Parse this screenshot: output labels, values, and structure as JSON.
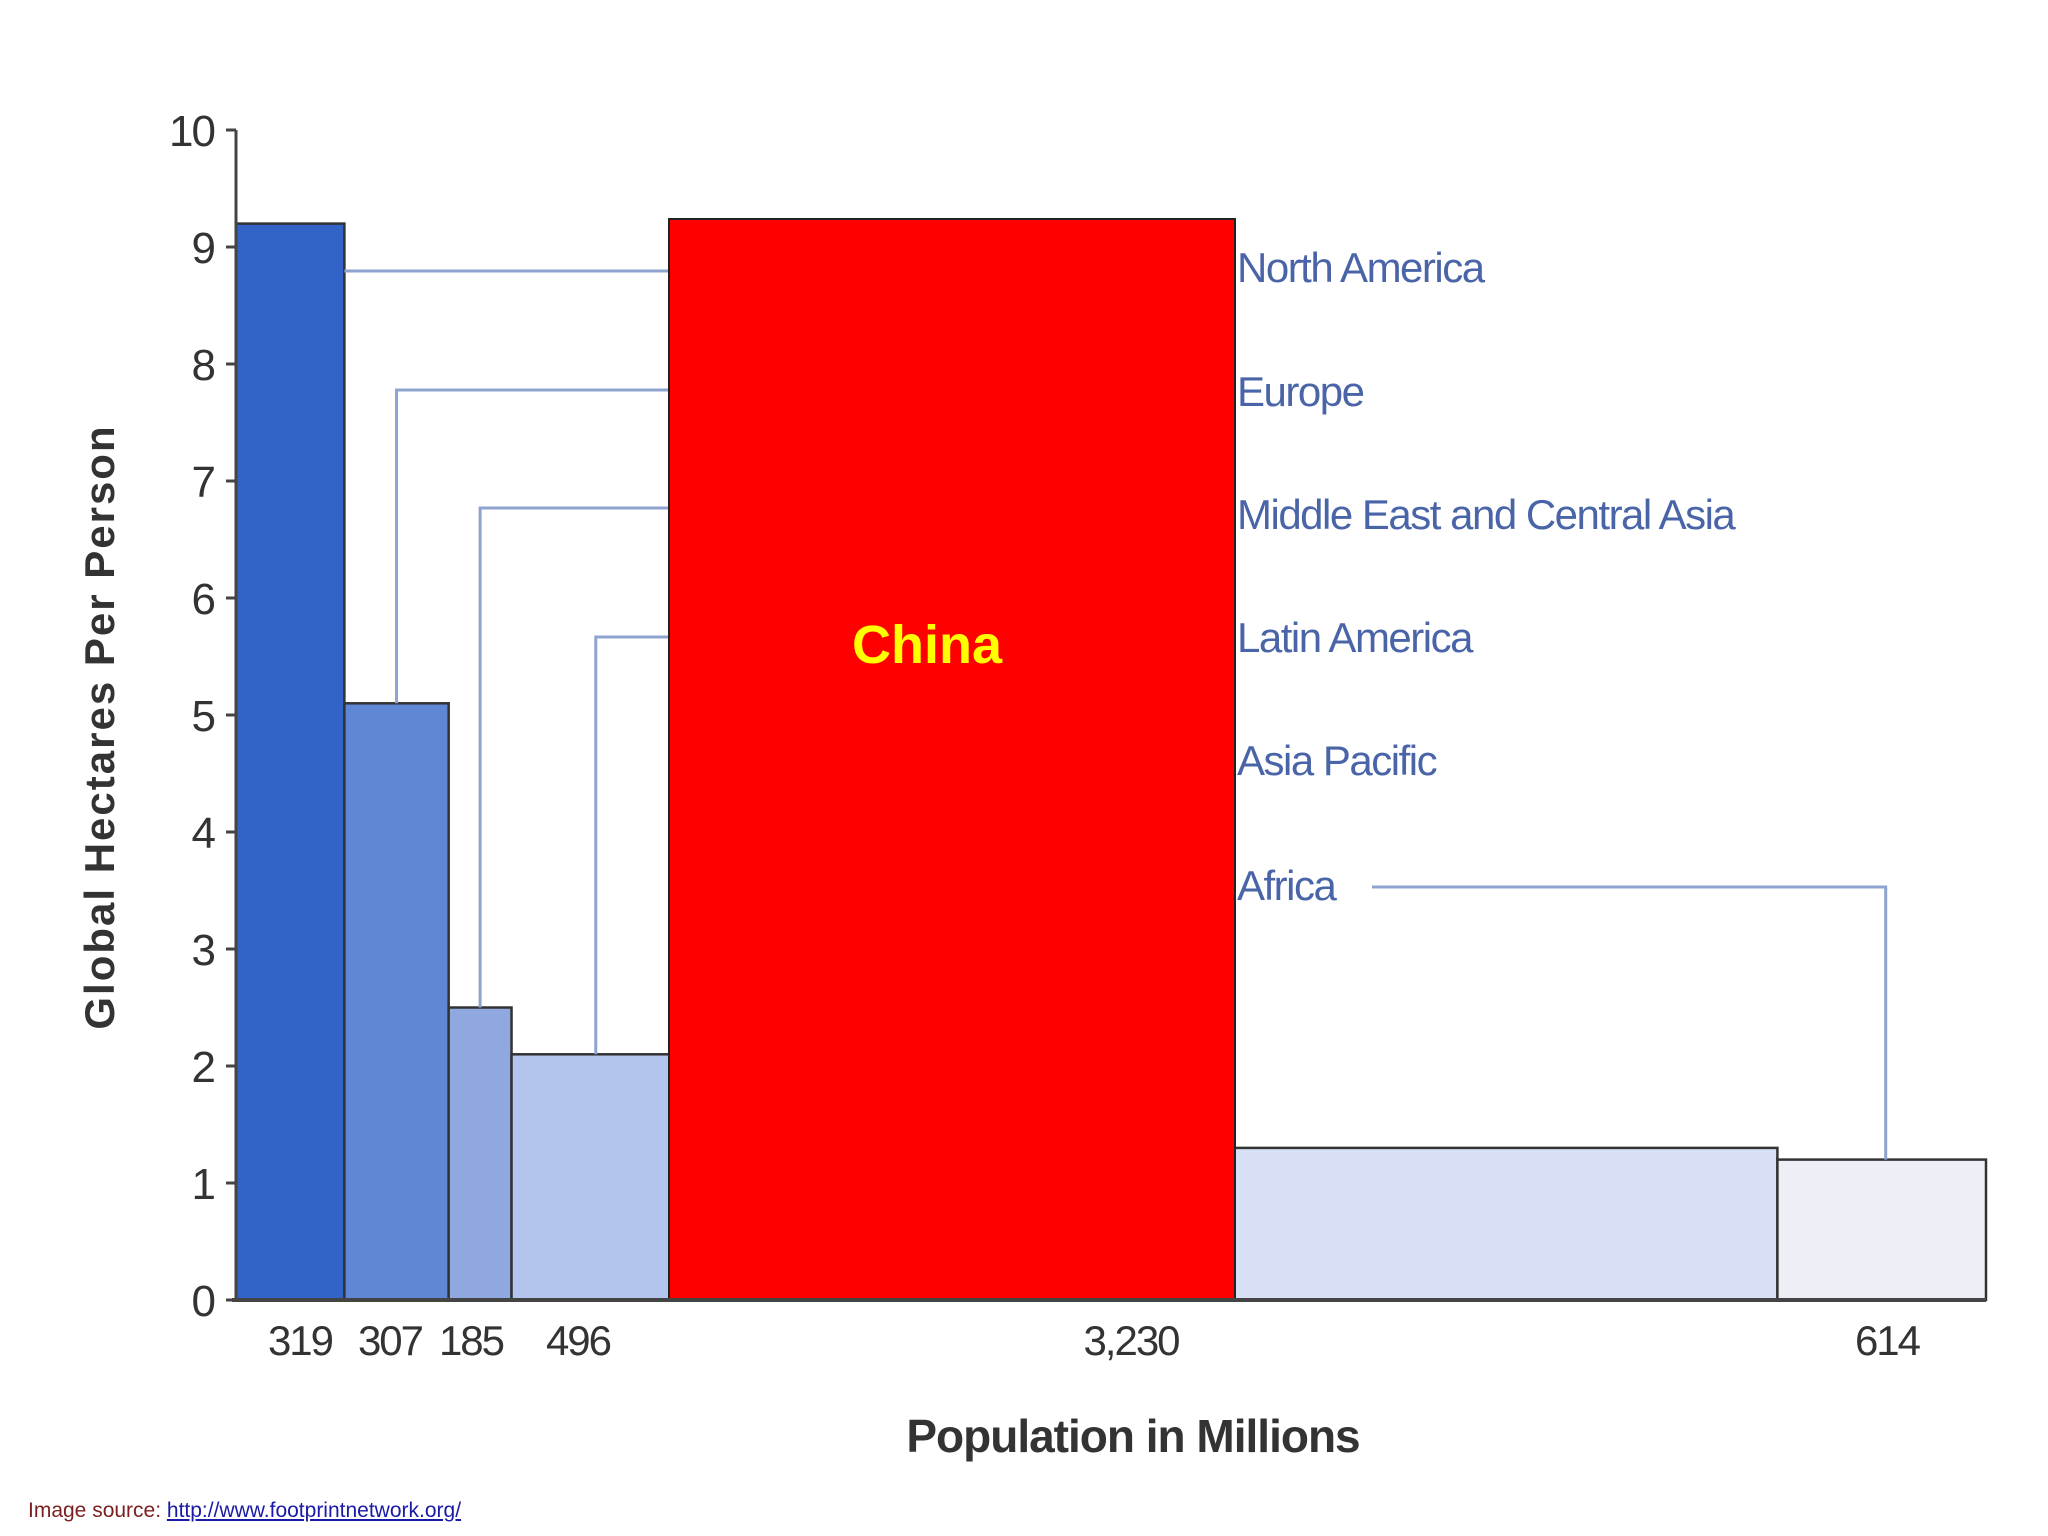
{
  "chart_data": {
    "type": "bar",
    "variant": "variable-width bars (bar width proportional to population)",
    "xlabel": "Population in Millions",
    "ylabel": "Global Hectares Per Person",
    "ylim": [
      0,
      10
    ],
    "yticks": [
      "0",
      "1",
      "2",
      "3",
      "4",
      "5",
      "6",
      "7",
      "8",
      "9",
      "10"
    ],
    "grid": false,
    "legend_placement": "right (labels with leader lines)",
    "categories": [
      "North America",
      "Europe",
      "Middle East and Central Asia",
      "Latin America",
      "Asia Pacific",
      "Africa"
    ],
    "populations_millions": [
      319,
      307,
      185,
      496,
      3230,
      614
    ],
    "population_labels": [
      "319",
      "307",
      "185",
      "496",
      "3,230",
      "614"
    ],
    "values": [
      9.2,
      5.1,
      2.5,
      2.1,
      1.3,
      1.2
    ],
    "colors": [
      "#3264c8",
      "#5f87d6",
      "#8fa8df",
      "#b3c5ec",
      "#d7e0f5",
      "#eceff6"
    ],
    "overlay": {
      "label": "China",
      "fill": "#ff0000",
      "text_color": "#ffff00"
    },
    "axis_color": "#444444",
    "leader_color": "#8fa3cf",
    "label_color": "#4a64a8"
  },
  "source": {
    "prefix": "Image source: ",
    "link_text": "http://www.footprintnetwork.org/"
  }
}
